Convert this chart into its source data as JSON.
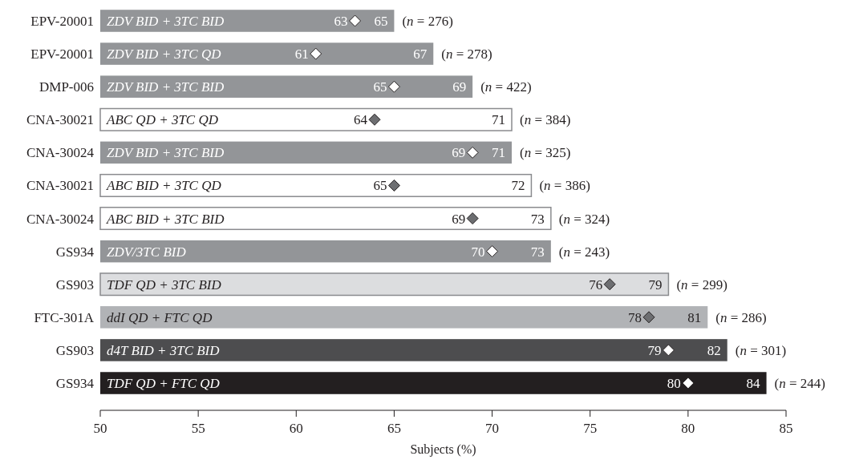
{
  "chart_data": {
    "type": "bar",
    "orientation": "horizontal",
    "xlabel": "Subjects (%)",
    "categories": [
      "EPV-20001",
      "EPV-20001",
      "DMP-006",
      "CNA-30021",
      "CNA-30024",
      "CNA-30021",
      "CNA-30024",
      "GS934",
      "GS903",
      "FTC-301A",
      "GS903",
      "GS934"
    ],
    "series": [
      {
        "values": [
          65,
          67,
          69,
          71,
          71,
          72,
          73,
          73,
          79,
          81,
          82,
          84
        ],
        "colors": [
          "#939598",
          "#939598",
          "#939598",
          "#ffffff",
          "#939598",
          "#ffffff",
          "#ffffff",
          "#939598",
          "#dcdddf",
          "#b1b3b6",
          "#4d4d4f",
          "#231f20"
        ]
      },
      {
        "type": "scatter",
        "values": [
          63,
          61,
          65,
          64,
          69,
          65,
          69,
          70,
          76,
          78,
          79,
          80
        ],
        "colors": [
          "#ffffff",
          "#ffffff",
          "#ffffff",
          "#6d6e71",
          "#ffffff",
          "#6d6e71",
          "#6d6e71",
          "#ffffff",
          "#6d6e71",
          "#6d6e71",
          "#ffffff",
          "#ffffff"
        ]
      }
    ],
    "marker": "diamond",
    "data_labels": true,
    "xlim": [
      50,
      85
    ],
    "xticks": [
      50,
      55,
      60,
      65,
      70,
      75,
      80,
      85
    ],
    "grid": false,
    "annotations": [
      "ZDV BID + 3TC BID",
      "(n = 276)",
      "ZDV BID + 3TC QD",
      "(n = 278)",
      "ZDV BID + 3TC BID",
      "(n = 422)",
      "ABC QD + 3TC QD",
      "(n = 384)",
      "ZDV BID + 3TC BID",
      "(n = 325)",
      "ABC BID + 3TC QD",
      "(n = 386)",
      "ABC BID + 3TC BID",
      "(n = 324)",
      "ZDV/3TC BID",
      "(n = 243)",
      "TDF QD + 3TC BID",
      "(n = 299)",
      "ddI QD + FTC QD",
      "(n = 286)",
      "d4T BID + 3TC BID",
      "(n = 301)",
      "TDF QD + FTC QD",
      "(n = 244)"
    ]
  }
}
